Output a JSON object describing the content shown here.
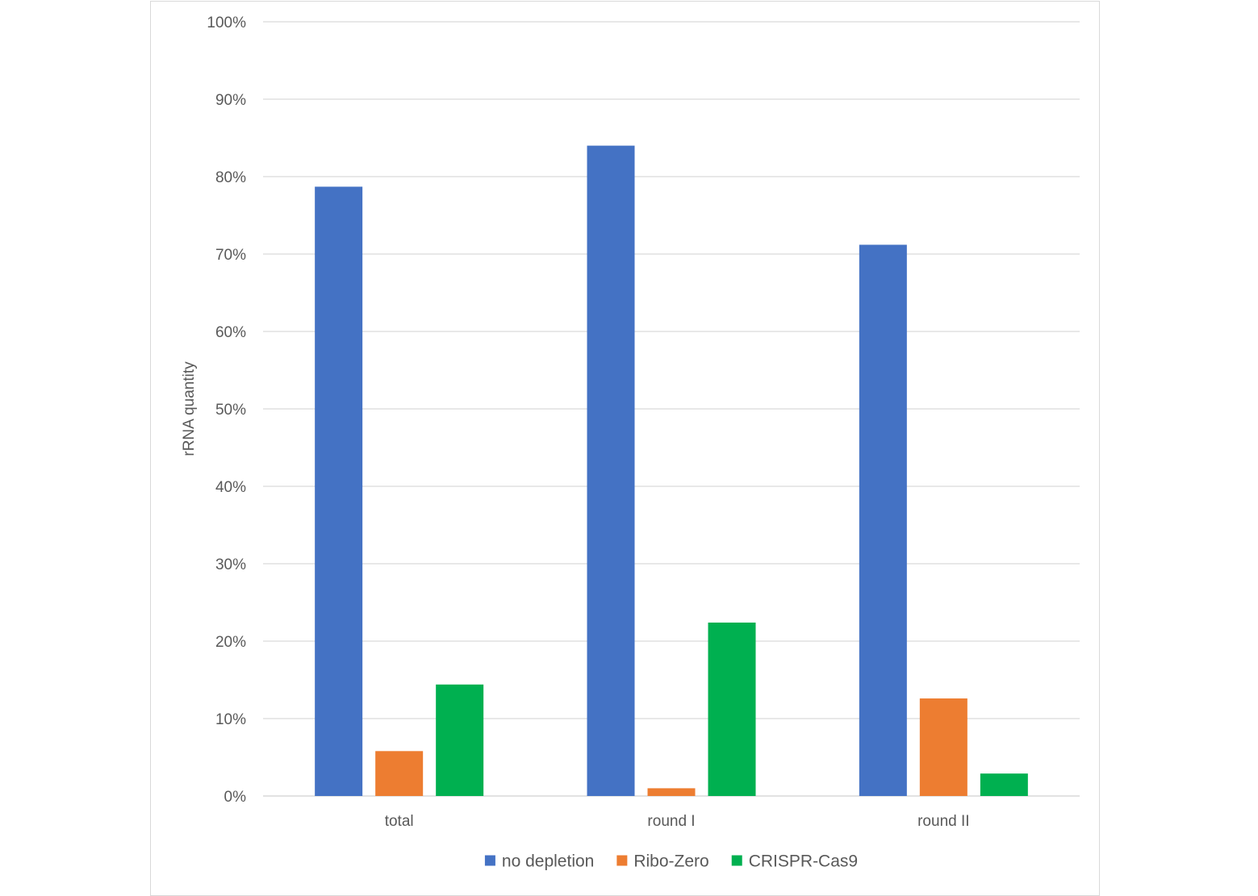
{
  "chart_data": {
    "type": "bar",
    "title": "",
    "xlabel": "",
    "ylabel": "rRNA quantity",
    "ylim": [
      0,
      100
    ],
    "y_ticks": [
      "0%",
      "10%",
      "20%",
      "30%",
      "40%",
      "50%",
      "60%",
      "70%",
      "80%",
      "90%",
      "100%"
    ],
    "categories": [
      "total",
      "round I",
      "round II"
    ],
    "series": [
      {
        "name": "no depletion",
        "color": "#4472C4",
        "values": [
          78.7,
          84.0,
          71.2
        ]
      },
      {
        "name": "Ribo-Zero",
        "color": "#ED7D31",
        "values": [
          5.8,
          1.0,
          12.6
        ]
      },
      {
        "name": "CRISPR-Cas9",
        "color": "#00B050",
        "values": [
          14.4,
          22.4,
          2.9
        ]
      }
    ],
    "grid": true,
    "legend_position": "bottom"
  }
}
